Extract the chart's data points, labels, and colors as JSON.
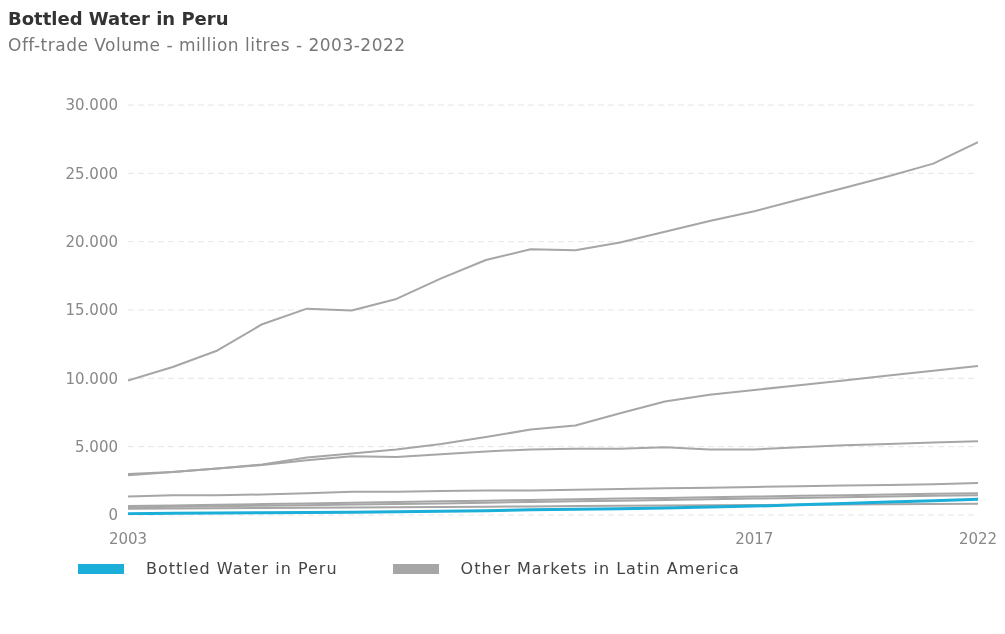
{
  "chart_data": {
    "type": "line",
    "title": "Bottled Water in Peru",
    "subtitle": "Off-trade Volume - million litres - 2003-2022",
    "x": [
      2003,
      2004,
      2005,
      2006,
      2007,
      2008,
      2009,
      2010,
      2011,
      2012,
      2013,
      2014,
      2015,
      2016,
      2017,
      2018,
      2019,
      2020,
      2021,
      2022
    ],
    "xlim": [
      2003,
      2022
    ],
    "xticks": [
      2003,
      2017,
      2022
    ],
    "ylim": [
      0,
      30000
    ],
    "yticks": [
      {
        "value": 0,
        "label": "0"
      },
      {
        "value": 5000,
        "label": "5.000"
      },
      {
        "value": 10000,
        "label": "10.000"
      },
      {
        "value": 15000,
        "label": "15.000"
      },
      {
        "value": 20000,
        "label": "20.000"
      },
      {
        "value": 25000,
        "label": "25.000"
      },
      {
        "value": 30000,
        "label": "30.000"
      }
    ],
    "grid": "y",
    "legend": "bottom",
    "marker": "none",
    "line_style": "solid",
    "series": [
      {
        "name": "Bottled Water in Peru",
        "color": "#1aaed8",
        "values": [
          100,
          120,
          140,
          160,
          180,
          200,
          230,
          270,
          320,
          380,
          420,
          460,
          520,
          580,
          650,
          750,
          850,
          950,
          1050,
          1150
        ]
      },
      {
        "name": "Other Markets in Latin America",
        "color": "#a6a6a6",
        "values": [
          9830,
          10830,
          12040,
          13960,
          15100,
          14960,
          15810,
          17310,
          18660,
          19440,
          19370,
          19940,
          20730,
          21510,
          22220,
          23080,
          23930,
          24790,
          25710,
          27280
        ]
      },
      {
        "color": "#a6a6a6",
        "values": [
          2900,
          3150,
          3400,
          3700,
          4200,
          4500,
          4800,
          5200,
          5700,
          6250,
          6550,
          7450,
          8300,
          8800,
          9150,
          9500,
          9850,
          10200,
          10550,
          10900
        ]
      },
      {
        "color": "#a6a6a6",
        "values": [
          3000,
          3150,
          3400,
          3650,
          4000,
          4300,
          4250,
          4450,
          4650,
          4800,
          4850,
          4850,
          4950,
          4800,
          4800,
          4950,
          5100,
          5200,
          5300,
          5400
        ]
      },
      {
        "color": "#a6a6a6",
        "values": [
          1350,
          1450,
          1450,
          1500,
          1600,
          1700,
          1700,
          1750,
          1800,
          1800,
          1850,
          1900,
          1950,
          2000,
          2050,
          2100,
          2150,
          2200,
          2250,
          2350
        ]
      },
      {
        "color": "#a6a6a6",
        "values": [
          650,
          700,
          750,
          800,
          850,
          900,
          950,
          1000,
          1050,
          1100,
          1150,
          1200,
          1250,
          1300,
          1350,
          1400,
          1450,
          1500,
          1550,
          1600
        ]
      },
      {
        "color": "#a6a6a6",
        "values": [
          550,
          600,
          640,
          680,
          720,
          760,
          800,
          850,
          900,
          950,
          1000,
          1050,
          1100,
          1150,
          1200,
          1250,
          1300,
          1350,
          1400,
          1450
        ]
      },
      {
        "color": "#a6a6a6",
        "values": [
          450,
          470,
          490,
          510,
          530,
          550,
          570,
          590,
          610,
          630,
          650,
          670,
          690,
          710,
          730,
          750,
          770,
          790,
          810,
          830
        ]
      }
    ]
  }
}
